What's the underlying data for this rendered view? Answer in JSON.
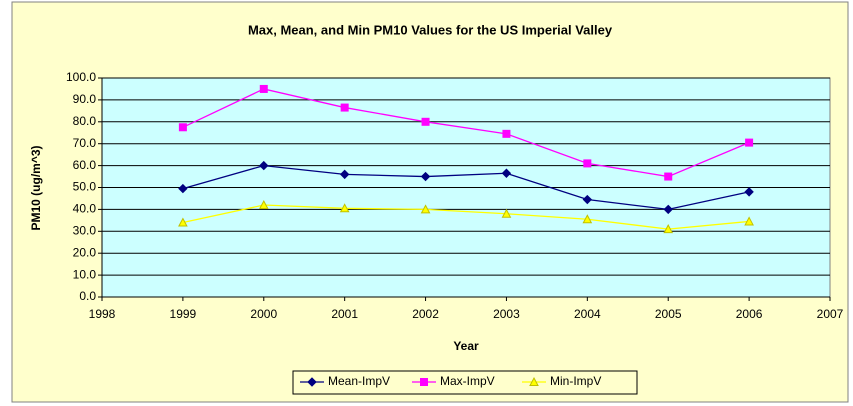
{
  "chart_data": {
    "type": "line",
    "title": "Max, Mean, and Min PM10 Values for the US Imperial Valley",
    "x_label": "Year",
    "y_label": "PM10 (ug/m^3)",
    "x": [
      1999,
      2000,
      2001,
      2002,
      2003,
      2004,
      2005,
      2006
    ],
    "series": [
      {
        "name": "Mean-ImpV",
        "color": "#000080",
        "marker": "diamond",
        "values": [
          49.5,
          60,
          56,
          55,
          56.5,
          44.5,
          40,
          48
        ]
      },
      {
        "name": "Max-ImpV",
        "color": "#ff00ff",
        "marker": "square",
        "values": [
          77.5,
          95,
          86.5,
          80,
          74.5,
          61,
          55,
          70.5
        ]
      },
      {
        "name": "Min-ImpV",
        "color": "#ffff00",
        "marker": "triangle",
        "values": [
          34,
          42,
          40.5,
          40,
          38,
          35.5,
          31,
          34.5
        ]
      }
    ],
    "xlim": [
      1998,
      2007
    ],
    "xticks": [
      1998,
      1999,
      2000,
      2001,
      2002,
      2003,
      2004,
      2005,
      2006,
      2007
    ],
    "ylim": [
      0,
      100
    ],
    "yticks": [
      {
        "value": 0,
        "label": "0.0"
      },
      {
        "value": 10,
        "label": "10.0"
      },
      {
        "value": 20,
        "label": "20.0"
      },
      {
        "value": 30,
        "label": "30.0"
      },
      {
        "value": 40,
        "label": "40.0"
      },
      {
        "value": 50,
        "label": "50.0"
      },
      {
        "value": 60,
        "label": "60.0"
      },
      {
        "value": 70,
        "label": "70.0"
      },
      {
        "value": 80,
        "label": "80.0"
      },
      {
        "value": 90,
        "label": "90.0"
      },
      {
        "value": 100,
        "label": "100.0"
      }
    ],
    "grid": true,
    "legend": "bottom"
  }
}
